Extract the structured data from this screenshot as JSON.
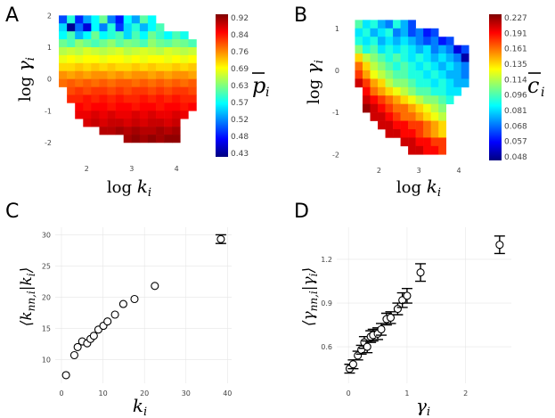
{
  "panels": {
    "A": {
      "letter": "A",
      "chart_data": {
        "type": "heatmap",
        "xlabel": "log k_i",
        "ylabel": "log γ_i",
        "colorbar_label": "p̄_i",
        "x_ticks": [
          2,
          3,
          4
        ],
        "y_ticks": [
          2,
          1,
          0,
          -1,
          -2
        ],
        "xlim": [
          1.3,
          4.55
        ],
        "ylim": [
          -2.45,
          2.15
        ],
        "cell_width": 0.18,
        "cell_height": 0.25,
        "colorbar_ticks": [
          0.92,
          0.84,
          0.76,
          0.69,
          0.63,
          0.57,
          0.52,
          0.48,
          0.43
        ],
        "value_range": [
          0.39,
          0.95
        ],
        "grid": false,
        "rows": [
          {
            "y": 1.75,
            "x_start": 1.38,
            "values": [
              0.5,
              0.62,
              0.48,
              0.55,
              0.6,
              0.66,
              0.53,
              0.47,
              0.6,
              0.55,
              0.65,
              0.6
            ]
          },
          {
            "y": 1.5,
            "x_start": 1.38,
            "values": [
              0.58,
              0.4,
              0.52,
              0.44,
              0.6,
              0.53,
              0.62,
              0.49,
              0.58,
              0.62,
              0.56,
              0.6,
              0.64
            ]
          },
          {
            "y": 1.25,
            "x_start": 1.38,
            "values": [
              0.6,
              0.64,
              0.56,
              0.6,
              0.66,
              0.6,
              0.62,
              0.64,
              0.58,
              0.64,
              0.6,
              0.66,
              0.63,
              0.6,
              0.64,
              0.61
            ]
          },
          {
            "y": 1.0,
            "x_start": 1.38,
            "values": [
              0.66,
              0.64,
              0.68,
              0.66,
              0.64,
              0.66,
              0.68,
              0.65,
              0.67,
              0.66,
              0.64,
              0.68,
              0.66,
              0.65,
              0.67,
              0.66,
              0.64
            ]
          },
          {
            "y": 0.75,
            "x_start": 1.38,
            "values": [
              0.7,
              0.71,
              0.7,
              0.72,
              0.71,
              0.7,
              0.71,
              0.72,
              0.7,
              0.71,
              0.72,
              0.71,
              0.7,
              0.72,
              0.71,
              0.7,
              0.71
            ]
          },
          {
            "y": 0.5,
            "x_start": 1.38,
            "values": [
              0.73,
              0.74,
              0.73,
              0.74,
              0.74,
              0.73,
              0.74,
              0.74,
              0.73,
              0.74,
              0.73,
              0.74,
              0.74,
              0.73,
              0.74,
              0.73,
              0.74
            ]
          },
          {
            "y": 0.25,
            "x_start": 1.38,
            "values": [
              0.76,
              0.76,
              0.77,
              0.76,
              0.77,
              0.76,
              0.77,
              0.76,
              0.76,
              0.77,
              0.76,
              0.77,
              0.76,
              0.76,
              0.77,
              0.76,
              0.77
            ]
          },
          {
            "y": 0.0,
            "x_start": 1.38,
            "values": [
              0.8,
              0.79,
              0.8,
              0.79,
              0.8,
              0.8,
              0.79,
              0.8,
              0.79,
              0.8,
              0.8,
              0.79,
              0.8,
              0.79,
              0.8,
              0.8,
              0.79
            ]
          },
          {
            "y": -0.25,
            "x_start": 1.38,
            "values": [
              0.82,
              0.83,
              0.82,
              0.83,
              0.82,
              0.83,
              0.82,
              0.83,
              0.83,
              0.82,
              0.83,
              0.82,
              0.83,
              0.82,
              0.83,
              0.82,
              0.83
            ]
          },
          {
            "y": -0.5,
            "x_start": 1.56,
            "values": [
              0.84,
              0.85,
              0.84,
              0.85,
              0.85,
              0.84,
              0.85,
              0.84,
              0.85,
              0.85,
              0.84,
              0.85,
              0.84,
              0.85,
              0.85,
              0.84
            ]
          },
          {
            "y": -0.75,
            "x_start": 1.56,
            "values": [
              0.86,
              0.86,
              0.87,
              0.86,
              0.87,
              0.86,
              0.87,
              0.86,
              0.86,
              0.87,
              0.86,
              0.87,
              0.86,
              0.87,
              0.86,
              0.86
            ]
          },
          {
            "y": -1.0,
            "x_start": 1.74,
            "values": [
              0.88,
              0.87,
              0.88,
              0.88,
              0.87,
              0.88,
              0.88,
              0.87,
              0.88,
              0.88,
              0.87,
              0.88,
              0.88,
              0.87,
              0.88
            ]
          },
          {
            "y": -1.25,
            "x_start": 1.74,
            "values": [
              0.89,
              0.89,
              0.9,
              0.89,
              0.9,
              0.89,
              0.89,
              0.9,
              0.89,
              0.9,
              0.89,
              0.89,
              0.9,
              0.89
            ]
          },
          {
            "y": -1.5,
            "x_start": 1.92,
            "values": [
              0.9,
              0.91,
              0.9,
              0.91,
              0.91,
              0.9,
              0.91,
              0.9,
              0.91,
              0.91,
              0.9,
              0.91
            ]
          },
          {
            "y": -1.75,
            "x_start": 2.28,
            "values": [
              0.92,
              0.92,
              0.93,
              0.92,
              0.93,
              0.92,
              0.92,
              0.93,
              0.92,
              0.93
            ]
          },
          {
            "y": -2.0,
            "x_start": 2.82,
            "values": [
              0.93,
              0.94,
              0.93,
              0.94,
              0.93,
              0.94,
              0.94
            ]
          }
        ]
      }
    },
    "B": {
      "letter": "B",
      "chart_data": {
        "type": "heatmap",
        "xlabel": "log k_i",
        "ylabel": "log γ_i",
        "colorbar_label": "c̄_i",
        "x_ticks": [
          2,
          3,
          4
        ],
        "y_ticks": [
          1,
          0,
          -1,
          -2
        ],
        "xlim": [
          1.1,
          4.4
        ],
        "ylim": [
          -2.1,
          1.25
        ],
        "cell_width": 0.19,
        "cell_height": 0.2,
        "colorbar_ticks": [
          0.227,
          0.191,
          0.161,
          0.135,
          0.114,
          0.096,
          0.081,
          0.068,
          0.057,
          0.048
        ],
        "value_range": [
          0.042,
          0.235
        ],
        "grid": false,
        "rows": [
          {
            "y": 1.0,
            "x_start": 1.4,
            "values": [
              0.13,
              0.11,
              0.12,
              0.1,
              0.09,
              0.12,
              0.1,
              0.08
            ]
          },
          {
            "y": 0.8,
            "x_start": 1.4,
            "values": [
              0.11,
              0.12,
              0.1,
              0.11,
              0.12,
              0.09,
              0.1,
              0.08,
              0.09,
              0.07,
              0.08
            ]
          },
          {
            "y": 0.6,
            "x_start": 1.4,
            "values": [
              0.12,
              0.11,
              0.12,
              0.1,
              0.11,
              0.1,
              0.11,
              0.1,
              0.09,
              0.08,
              0.09,
              0.07,
              0.08
            ]
          },
          {
            "y": 0.4,
            "x_start": 1.4,
            "values": [
              0.14,
              0.12,
              0.13,
              0.11,
              0.12,
              0.11,
              0.12,
              0.11,
              0.1,
              0.11,
              0.09,
              0.1,
              0.09,
              0.06,
              0.08
            ]
          },
          {
            "y": 0.2,
            "x_start": 1.4,
            "values": [
              0.17,
              0.15,
              0.14,
              0.13,
              0.12,
              0.13,
              0.12,
              0.11,
              0.12,
              0.11,
              0.1,
              0.11,
              0.1,
              0.09,
              0.05
            ]
          },
          {
            "y": 0.0,
            "x_start": 1.4,
            "values": [
              0.19,
              0.17,
              0.15,
              0.14,
              0.13,
              0.12,
              0.13,
              0.12,
              0.11,
              0.12,
              0.11,
              0.1,
              0.11,
              0.1,
              0.09
            ]
          },
          {
            "y": -0.2,
            "x_start": 1.4,
            "values": [
              0.2,
              0.18,
              0.16,
              0.15,
              0.14,
              0.13,
              0.13,
              0.12,
              0.12,
              0.11,
              0.12,
              0.11,
              0.1,
              0.1,
              0.09
            ]
          },
          {
            "y": -0.4,
            "x_start": 1.4,
            "values": [
              0.22,
              0.2,
              0.18,
              0.17,
              0.15,
              0.14,
              0.14,
              0.13,
              0.12,
              0.12,
              0.11,
              0.12,
              0.11,
              0.1,
              0.1
            ]
          },
          {
            "y": -0.6,
            "x_start": 1.59,
            "values": [
              0.21,
              0.19,
              0.18,
              0.17,
              0.16,
              0.15,
              0.14,
              0.13,
              0.13,
              0.12,
              0.12,
              0.11,
              0.11
            ]
          },
          {
            "y": -0.8,
            "x_start": 1.59,
            "values": [
              0.22,
              0.21,
              0.2,
              0.19,
              0.18,
              0.17,
              0.16,
              0.15,
              0.14,
              0.14,
              0.13,
              0.12
            ]
          },
          {
            "y": -1.0,
            "x_start": 1.59,
            "values": [
              0.23,
              0.22,
              0.21,
              0.2,
              0.19,
              0.19,
              0.18,
              0.17,
              0.16,
              0.15,
              0.14
            ]
          },
          {
            "y": -1.2,
            "x_start": 1.78,
            "values": [
              0.22,
              0.22,
              0.21,
              0.2,
              0.19,
              0.19,
              0.18,
              0.17,
              0.16,
              0.15
            ]
          },
          {
            "y": -1.4,
            "x_start": 1.97,
            "values": [
              0.22,
              0.22,
              0.21,
              0.21,
              0.2,
              0.2,
              0.19,
              0.18,
              0.17
            ]
          },
          {
            "y": -1.6,
            "x_start": 2.16,
            "values": [
              0.22,
              0.22,
              0.21,
              0.21,
              0.2,
              0.19,
              0.18,
              0.17
            ]
          },
          {
            "y": -1.8,
            "x_start": 2.54,
            "values": [
              0.22,
              0.22,
              0.21,
              0.21,
              0.2,
              0.2
            ]
          },
          {
            "y": -2.0,
            "x_start": 2.73,
            "values": [
              0.22,
              0.22,
              0.21,
              0.21,
              0.2
            ]
          }
        ]
      }
    },
    "C": {
      "letter": "C",
      "chart_data": {
        "type": "scatter",
        "xlabel": "k_i",
        "ylabel": "⟨k_nn,i | k_i⟩",
        "x_ticks": [
          0,
          10,
          20,
          30,
          40
        ],
        "y_ticks": [
          10,
          15,
          20,
          25,
          30
        ],
        "xlim": [
          -1.5,
          41
        ],
        "ylim": [
          6.2,
          31.2
        ],
        "grid": true,
        "x": [
          1.1,
          3.1,
          3.9,
          5.0,
          6.2,
          7.0,
          7.8,
          8.9,
          10.1,
          11.1,
          12.9,
          14.9,
          17.6,
          22.5,
          38.4
        ],
        "y": [
          7.5,
          10.7,
          12.0,
          12.9,
          12.6,
          13.3,
          13.8,
          14.8,
          15.4,
          16.1,
          17.2,
          18.9,
          19.7,
          21.8,
          29.3
        ],
        "yerr": [
          0,
          0,
          0,
          0,
          0,
          0,
          0,
          0,
          0,
          0,
          0,
          0,
          0,
          0,
          0.7
        ]
      }
    },
    "D": {
      "letter": "D",
      "chart_data": {
        "type": "scatter",
        "xlabel": "γ_i",
        "ylabel": "⟨γ_nn,i | γ_i⟩",
        "x_ticks": [
          0,
          1,
          2
        ],
        "y_ticks": [
          0.6,
          0.9,
          1.2
        ],
        "xlim": [
          -0.2,
          2.78
        ],
        "ylim": [
          0.35,
          1.42
        ],
        "grid": true,
        "x": [
          0.02,
          0.08,
          0.16,
          0.22,
          0.27,
          0.32,
          0.38,
          0.42,
          0.5,
          0.56,
          0.65,
          0.72,
          0.84,
          0.92,
          1.0,
          1.23,
          2.58
        ],
        "y": [
          0.45,
          0.48,
          0.54,
          0.58,
          0.63,
          0.6,
          0.67,
          0.68,
          0.69,
          0.72,
          0.79,
          0.8,
          0.86,
          0.92,
          0.95,
          1.11,
          1.3
        ],
        "yerr": [
          0.03,
          0.03,
          0.03,
          0.03,
          0.04,
          0.04,
          0.04,
          0.04,
          0.04,
          0.04,
          0.04,
          0.04,
          0.04,
          0.05,
          0.05,
          0.06,
          0.06
        ]
      }
    }
  },
  "colormap": [
    "#00007f",
    "#0000ff",
    "#007fff",
    "#00ffff",
    "#7fff7f",
    "#ffff00",
    "#ff7f00",
    "#ff0000",
    "#7f0000"
  ]
}
